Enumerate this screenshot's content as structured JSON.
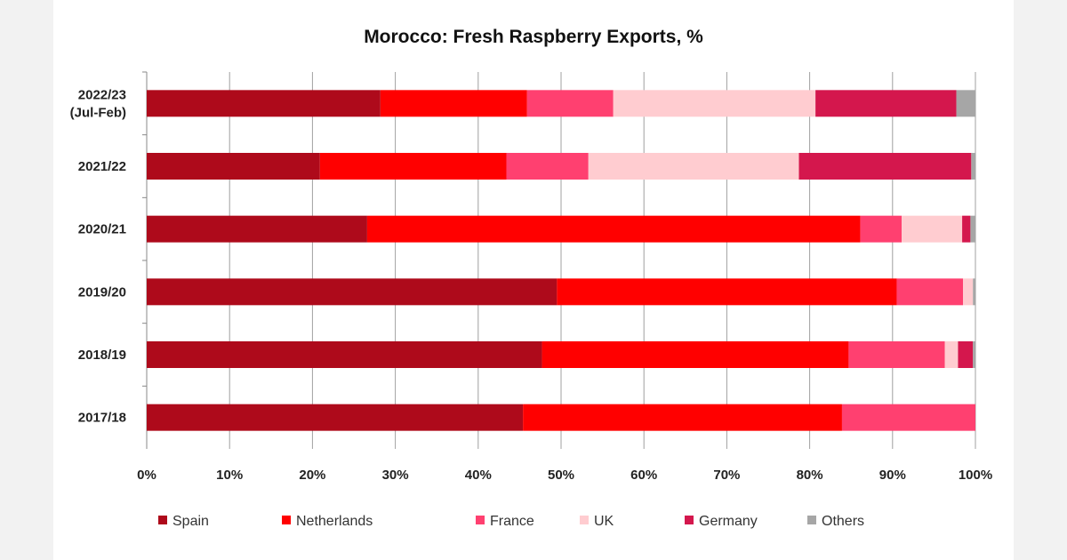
{
  "chart_data": {
    "type": "bar",
    "orientation": "horizontal",
    "stacked": "percent",
    "title": "Morocco: Fresh Raspberry Exports, %",
    "categories": [
      [
        "2022/23",
        "(Jul-Feb)"
      ],
      [
        "2021/22"
      ],
      [
        "2020/21"
      ],
      [
        "2019/20"
      ],
      [
        "2018/19"
      ],
      [
        "2017/18"
      ]
    ],
    "xlim": [
      0,
      100
    ],
    "xticks": [
      "0%",
      "10%",
      "20%",
      "30%",
      "40%",
      "50%",
      "60%",
      "70%",
      "80%",
      "90%",
      "100%"
    ],
    "grid": true,
    "legend_position": "bottom",
    "series": [
      {
        "name": "Spain",
        "color": "#ae0a1b",
        "values": [
          28.2,
          20.9,
          26.6,
          49.5,
          47.7,
          45.4
        ]
      },
      {
        "name": "Netherlands",
        "color": "#ff0000",
        "values": [
          17.7,
          22.5,
          59.5,
          41.0,
          37.0,
          38.5
        ]
      },
      {
        "name": "France",
        "color": "#ff4070",
        "values": [
          10.4,
          9.9,
          5.0,
          8.0,
          11.6,
          16.1
        ]
      },
      {
        "name": "UK",
        "color": "#ffccd0",
        "values": [
          24.4,
          25.4,
          7.3,
          1.2,
          1.6,
          0
        ]
      },
      {
        "name": "Germany",
        "color": "#d4174d",
        "values": [
          17.0,
          20.8,
          1.0,
          0,
          1.8,
          0
        ]
      },
      {
        "name": "Others",
        "color": "#a6a6a6",
        "values": [
          2.3,
          0.5,
          0.6,
          0.3,
          0.3,
          0
        ]
      }
    ]
  }
}
